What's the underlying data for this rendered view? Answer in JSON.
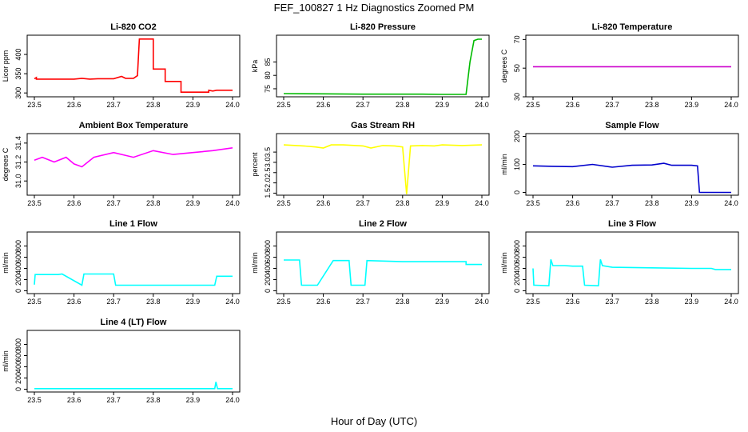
{
  "figure": {
    "title": "FEF_100827  1 Hz Diagnostics Zoomed PM",
    "xlabel": "Hour of Day (UTC)"
  },
  "chart_data": [
    {
      "type": "line",
      "title": "Li-820 CO2",
      "ylabel": "Licor ppm",
      "color": "#ff0000",
      "xlim": [
        23.5,
        24.0
      ],
      "x_ticks": [
        "23.5",
        "23.6",
        "23.7",
        "23.8",
        "23.9",
        "24.0"
      ],
      "ylim": [
        290,
        450
      ],
      "y_ticks": [
        "300",
        "350",
        "400"
      ],
      "series": [
        {
          "x": [
            23.5,
            23.505,
            23.505,
            23.55,
            23.6,
            23.62,
            23.64,
            23.66,
            23.7,
            23.72,
            23.73,
            23.75,
            23.76,
            23.765,
            23.8,
            23.8,
            23.83,
            23.83,
            23.87,
            23.87,
            23.94,
            23.94,
            23.95,
            23.96,
            24.0
          ],
          "y": [
            337,
            340,
            336,
            336,
            336,
            338,
            336,
            337,
            337,
            343,
            338,
            338,
            345,
            440,
            440,
            362,
            362,
            330,
            330,
            302,
            302,
            307,
            305,
            307,
            307
          ]
        }
      ]
    },
    {
      "type": "line",
      "title": "Li-820 Pressure",
      "ylabel": "kPa",
      "color": "#00bb00",
      "xlim": [
        23.5,
        24.0
      ],
      "x_ticks": [
        "23.5",
        "23.6",
        "23.7",
        "23.8",
        "23.9",
        "24.0"
      ],
      "ylim": [
        72,
        95
      ],
      "y_ticks": [
        "75",
        "80",
        "85"
      ],
      "series": [
        {
          "x": [
            23.5,
            23.505,
            23.6,
            23.7,
            23.8,
            23.85,
            23.9,
            23.95,
            23.96,
            23.97,
            23.98,
            23.99,
            24.0
          ],
          "y": [
            73.2,
            73.2,
            73.1,
            73.0,
            73.0,
            73.0,
            72.9,
            72.9,
            72.9,
            85.0,
            93.0,
            93.5,
            93.5
          ]
        }
      ]
    },
    {
      "type": "line",
      "title": "Li-820 Temperature",
      "ylabel": "degrees C",
      "color": "#cc00cc",
      "xlim": [
        23.5,
        24.0
      ],
      "x_ticks": [
        "23.5",
        "23.6",
        "23.7",
        "23.8",
        "23.9",
        "24.0"
      ],
      "ylim": [
        30,
        73
      ],
      "y_ticks": [
        "30",
        "50",
        "70"
      ],
      "series": [
        {
          "x": [
            23.5,
            24.0
          ],
          "y": [
            51,
            51
          ]
        }
      ]
    },
    {
      "type": "line",
      "title": "Ambient Box Temperature",
      "ylabel": "degrees C",
      "color": "#ff00ff",
      "xlim": [
        23.5,
        24.0
      ],
      "x_ticks": [
        "23.5",
        "23.6",
        "23.7",
        "23.8",
        "23.9",
        "24.0"
      ],
      "ylim": [
        30.85,
        31.5
      ],
      "y_ticks": [
        "31.0",
        "31.2",
        "31.4"
      ],
      "series": [
        {
          "x": [
            23.5,
            23.52,
            23.55,
            23.58,
            23.6,
            23.62,
            23.65,
            23.7,
            23.75,
            23.8,
            23.85,
            23.9,
            23.95,
            24.0
          ],
          "y": [
            31.22,
            31.25,
            31.2,
            31.25,
            31.18,
            31.15,
            31.25,
            31.3,
            31.25,
            31.32,
            31.28,
            31.3,
            31.32,
            31.35
          ]
        }
      ]
    },
    {
      "type": "line",
      "title": "Gas Stream RH",
      "ylabel": "percent",
      "color": "#ffff00",
      "xlim": [
        23.5,
        24.0
      ],
      "x_ticks": [
        "23.5",
        "23.6",
        "23.7",
        "23.8",
        "23.9",
        "24.0"
      ],
      "ylim": [
        1.4,
        4.4
      ],
      "y_ticks": [
        "1.5",
        "2.0",
        "2.5",
        "3.0",
        "3.5"
      ],
      "series": [
        {
          "x": [
            23.5,
            23.55,
            23.58,
            23.6,
            23.62,
            23.65,
            23.7,
            23.72,
            23.75,
            23.78,
            23.8,
            23.81,
            23.82,
            23.85,
            23.88,
            23.9,
            23.95,
            24.0
          ],
          "y": [
            3.85,
            3.8,
            3.75,
            3.7,
            3.85,
            3.85,
            3.8,
            3.7,
            3.82,
            3.8,
            3.75,
            1.45,
            3.8,
            3.82,
            3.8,
            3.85,
            3.82,
            3.85
          ]
        }
      ]
    },
    {
      "type": "line",
      "title": "Sample Flow",
      "ylabel": "ml/min",
      "color": "#0000cc",
      "xlim": [
        23.5,
        24.0
      ],
      "x_ticks": [
        "23.5",
        "23.6",
        "23.7",
        "23.8",
        "23.9",
        "24.0"
      ],
      "ylim": [
        -10,
        210
      ],
      "y_ticks": [
        "0",
        "100",
        "200"
      ],
      "series": [
        {
          "x": [
            23.5,
            23.55,
            23.6,
            23.65,
            23.7,
            23.75,
            23.8,
            23.83,
            23.85,
            23.9,
            23.915,
            23.92,
            24.0
          ],
          "y": [
            95,
            93,
            92,
            100,
            90,
            97,
            98,
            104,
            97,
            97,
            95,
            0,
            0
          ]
        }
      ]
    },
    {
      "type": "line",
      "title": "Line 1 Flow",
      "ylabel": "ml/min",
      "color": "#00ffff",
      "xlim": [
        23.5,
        24.0
      ],
      "x_ticks": [
        "23.5",
        "23.6",
        "23.7",
        "23.8",
        "23.9",
        "24.0"
      ],
      "ylim": [
        -50,
        1050
      ],
      "y_ticks": [
        "0",
        "200",
        "400",
        "600",
        "800"
      ],
      "series": [
        {
          "x": [
            23.5,
            23.502,
            23.56,
            23.57,
            23.62,
            23.625,
            23.7,
            23.705,
            23.8,
            23.9,
            23.955,
            23.96,
            24.0
          ],
          "y": [
            110,
            290,
            290,
            300,
            100,
            300,
            300,
            100,
            100,
            100,
            100,
            260,
            260
          ]
        }
      ]
    },
    {
      "type": "line",
      "title": "Line 2 Flow",
      "ylabel": "ml/min",
      "color": "#00ffff",
      "xlim": [
        23.5,
        24.0
      ],
      "x_ticks": [
        "23.5",
        "23.6",
        "23.7",
        "23.8",
        "23.9",
        "24.0"
      ],
      "ylim": [
        -50,
        1050
      ],
      "y_ticks": [
        "0",
        "200",
        "400",
        "600",
        "800"
      ],
      "series": [
        {
          "x": [
            23.5,
            23.54,
            23.545,
            23.585,
            23.625,
            23.665,
            23.67,
            23.705,
            23.71,
            23.8,
            23.9,
            23.96,
            23.96,
            24.0
          ],
          "y": [
            550,
            550,
            100,
            100,
            540,
            540,
            100,
            100,
            540,
            520,
            520,
            520,
            470,
            470
          ]
        }
      ]
    },
    {
      "type": "line",
      "title": "Line 3 Flow",
      "ylabel": "ml/min",
      "color": "#00ffff",
      "xlim": [
        23.5,
        24.0
      ],
      "x_ticks": [
        "23.5",
        "23.6",
        "23.7",
        "23.8",
        "23.9",
        "24.0"
      ],
      "ylim": [
        -50,
        1050
      ],
      "y_ticks": [
        "0",
        "200",
        "400",
        "600",
        "800"
      ],
      "series": [
        {
          "x": [
            23.5,
            23.502,
            23.505,
            23.54,
            23.545,
            23.55,
            23.58,
            23.6,
            23.625,
            23.63,
            23.665,
            23.67,
            23.675,
            23.7,
            23.8,
            23.9,
            23.95,
            23.96,
            24.0
          ],
          "y": [
            400,
            100,
            100,
            90,
            560,
            450,
            450,
            440,
            440,
            100,
            90,
            560,
            450,
            420,
            410,
            400,
            400,
            380,
            380
          ]
        }
      ]
    },
    {
      "type": "line",
      "title": "Line 4 (LT) Flow",
      "ylabel": "ml/min",
      "color": "#00ffff",
      "xlim": [
        23.5,
        24.0
      ],
      "x_ticks": [
        "23.5",
        "23.6",
        "23.7",
        "23.8",
        "23.9",
        "24.0"
      ],
      "ylim": [
        -50,
        1050
      ],
      "y_ticks": [
        "0",
        "200",
        "400",
        "600",
        "800"
      ],
      "series": [
        {
          "x": [
            23.5,
            23.9,
            23.955,
            23.958,
            23.962,
            24.0
          ],
          "y": [
            10,
            10,
            10,
            130,
            10,
            10
          ]
        }
      ]
    }
  ]
}
